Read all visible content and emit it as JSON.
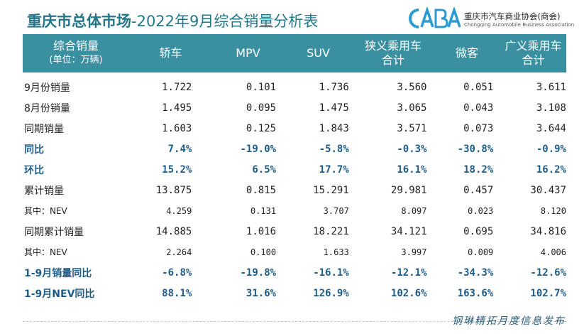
{
  "header": {
    "title_bold": "重庆市总体市场",
    "title_rest": "-2022年9月综合销量分析表",
    "logo_mark": "CABA",
    "logo_cn": "重庆市汽车商业协会(商会)",
    "logo_en": "Chongqing Automobile Business Association"
  },
  "columns": {
    "c0_line1": "综合销量",
    "c0_line2": "(单位：万辆)",
    "c1": "轿车",
    "c2": "MPV",
    "c3": "SUV",
    "c4_line1": "狭义乘用车",
    "c4_line2": "合计",
    "c5": "微客",
    "c6_line1": "广义乘用车",
    "c6_line2": "合计"
  },
  "rows": [
    {
      "label": "9月份销量",
      "v": [
        "1.722",
        "0.101",
        "1.736",
        "3.560",
        "0.051",
        "3.611"
      ]
    },
    {
      "label": "8月份销量",
      "v": [
        "1.495",
        "0.095",
        "1.475",
        "3.065",
        "0.043",
        "3.108"
      ]
    },
    {
      "label": "同期销量",
      "v": [
        "1.603",
        "0.125",
        "1.843",
        "3.571",
        "0.073",
        "3.644"
      ]
    },
    {
      "label": "同比",
      "v": [
        "7.4%",
        "-19.0%",
        "-5.8%",
        "-0.3%",
        "-30.8%",
        "-0.9%"
      ]
    },
    {
      "label": "环比",
      "v": [
        "15.2%",
        "6.5%",
        "17.7%",
        "16.1%",
        "18.2%",
        "16.2%"
      ]
    },
    {
      "label": "累计销量",
      "v": [
        "13.875",
        "0.815",
        "15.291",
        "29.981",
        "0.457",
        "30.437"
      ]
    },
    {
      "label": "其中：NEV",
      "v": [
        "4.259",
        "0.131",
        "3.707",
        "8.097",
        "0.023",
        "8.120"
      ]
    },
    {
      "label": "同期累计销量",
      "v": [
        "14.885",
        "1.016",
        "18.221",
        "34.121",
        "0.695",
        "34.816"
      ]
    },
    {
      "label": "其中：NEV",
      "v": [
        "2.264",
        "0.100",
        "1.633",
        "3.997",
        "0.009",
        "4.006"
      ]
    },
    {
      "label": "1-9月销量同比",
      "v": [
        "-6.8%",
        "-19.8%",
        "-16.1%",
        "-12.1%",
        "-34.3%",
        "-12.6%"
      ]
    },
    {
      "label": "1-9月NEV同比",
      "v": [
        "88.1%",
        "31.6%",
        "126.9%",
        "102.6%",
        "163.6%",
        "102.7%"
      ]
    }
  ],
  "footer": {
    "text": "钢琳精拓月度信息发布"
  },
  "colors": {
    "header_bg": "#3a8fa0",
    "title": "#24778a",
    "highlight_text": "#1e5c8a"
  }
}
